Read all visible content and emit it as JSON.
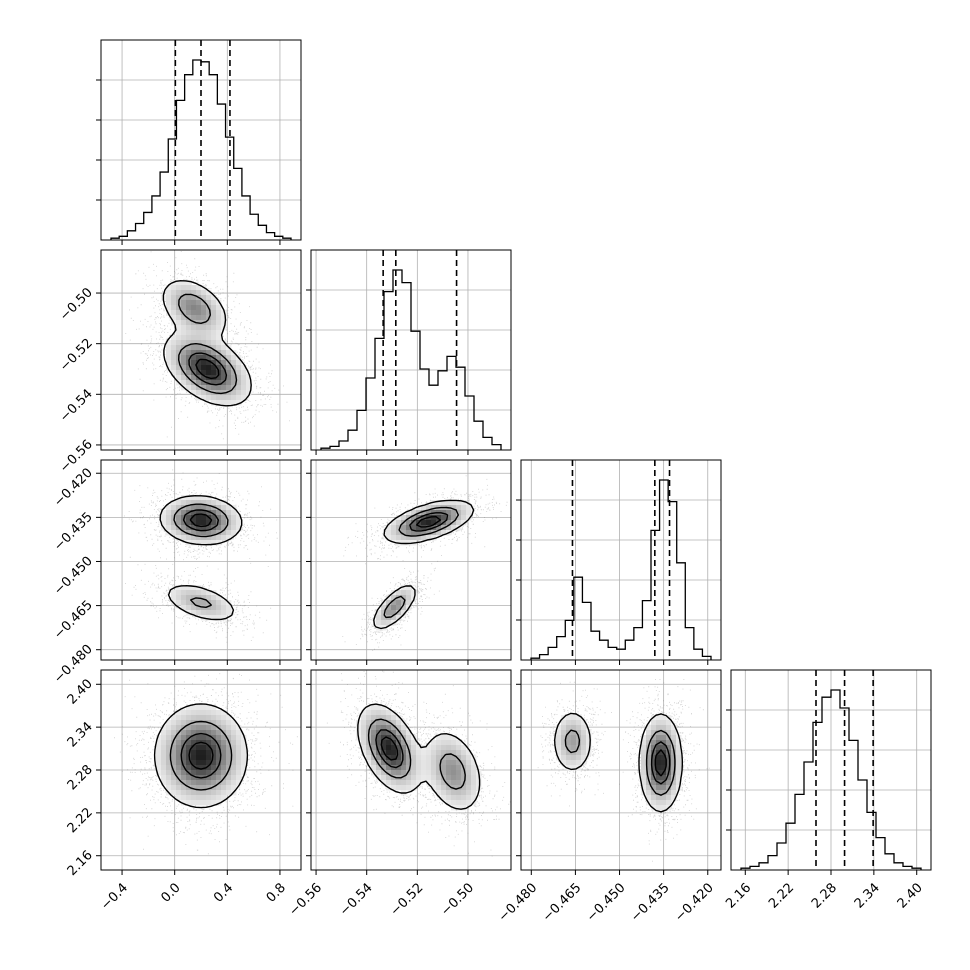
{
  "chart_data": {
    "type": "corner",
    "grid": true,
    "parameters": [
      {
        "range": [
          -0.56,
          0.96
        ],
        "ticks": [
          -0.4,
          0.0,
          0.4,
          0.8
        ],
        "tick_labels": [
          "−0.4",
          "0.0",
          "0.4",
          "0.8"
        ]
      },
      {
        "range": [
          -0.562,
          -0.483
        ],
        "ticks": [
          -0.56,
          -0.54,
          -0.52,
          -0.5
        ],
        "tick_labels": [
          "−0.56",
          "−0.54",
          "−0.52",
          "−0.50"
        ]
      },
      {
        "range": [
          -0.4835,
          -0.4155
        ],
        "ticks": [
          -0.48,
          -0.465,
          -0.45,
          -0.435,
          -0.42
        ],
        "tick_labels": [
          "−0.480",
          "−0.465",
          "−0.450",
          "−0.435",
          "−0.420"
        ]
      },
      {
        "range": [
          2.14,
          2.42
        ],
        "ticks": [
          2.16,
          2.22,
          2.28,
          2.34,
          2.4
        ],
        "tick_labels": [
          "2.16",
          "2.22",
          "2.28",
          "2.34",
          "2.40"
        ]
      }
    ],
    "histograms": [
      {
        "quantiles": [
          0.005,
          0.2,
          0.42
        ],
        "counts": [
          1,
          2,
          5,
          9,
          15,
          24,
          37,
          55,
          76,
          90,
          98,
          97,
          90,
          74,
          56,
          39,
          24,
          14,
          8,
          4,
          2,
          1
        ]
      },
      {
        "quantiles": [
          -0.5335,
          -0.5285,
          -0.5045
        ],
        "counts": [
          1,
          2,
          5,
          11,
          22,
          40,
          62,
          88,
          100,
          93,
          66,
          45,
          36,
          44,
          52,
          46,
          30,
          16,
          7,
          3
        ]
      },
      {
        "quantiles": [
          -0.466,
          -0.438,
          -0.433
        ],
        "counts": [
          1,
          3,
          7,
          13,
          22,
          46,
          32,
          16,
          11,
          7,
          6,
          11,
          18,
          33,
          72,
          100,
          88,
          54,
          18,
          6,
          2
        ]
      },
      {
        "quantiles": [
          2.259,
          2.299,
          2.339
        ],
        "counts": [
          1,
          2,
          4,
          8,
          15,
          26,
          42,
          60,
          82,
          96,
          100,
          90,
          72,
          50,
          32,
          18,
          9,
          4,
          2,
          1
        ]
      }
    ],
    "pairs": [
      {
        "x": 0,
        "y": 1,
        "blobs": [
          {
            "cx": 0.15,
            "cy": -0.506,
            "sx": 0.13,
            "sy": 0.006,
            "r": -0.4,
            "w": 0.6
          },
          {
            "cx": 0.25,
            "cy": -0.53,
            "sx": 0.16,
            "sy": 0.007,
            "r": -0.45,
            "w": 1.0
          }
        ]
      },
      {
        "x": 0,
        "y": 2,
        "blobs": [
          {
            "cx": 0.2,
            "cy": -0.436,
            "sx": 0.15,
            "sy": 0.004,
            "r": -0.1,
            "w": 1.0
          },
          {
            "cx": 0.2,
            "cy": -0.464,
            "sx": 0.15,
            "sy": 0.0035,
            "r": -0.5,
            "w": 0.45
          }
        ]
      },
      {
        "x": 0,
        "y": 3,
        "blobs": [
          {
            "cx": 0.2,
            "cy": 2.3,
            "sx": 0.17,
            "sy": 0.035,
            "r": 0.0,
            "w": 1.0
          }
        ]
      },
      {
        "x": 1,
        "y": 2,
        "blobs": [
          {
            "cx": -0.529,
            "cy": -0.4655,
            "sx": 0.0045,
            "sy": 0.004,
            "r": 0.7,
            "w": 0.6
          },
          {
            "cx": -0.5155,
            "cy": -0.4365,
            "sx": 0.0085,
            "sy": 0.0035,
            "r": 0.55,
            "w": 1.0
          }
        ]
      },
      {
        "x": 1,
        "y": 3,
        "blobs": [
          {
            "cx": -0.531,
            "cy": 2.31,
            "sx": 0.006,
            "sy": 0.03,
            "r": -0.45,
            "w": 1.0
          },
          {
            "cx": -0.506,
            "cy": 2.278,
            "sx": 0.006,
            "sy": 0.03,
            "r": -0.3,
            "w": 0.55
          }
        ]
      },
      {
        "x": 2,
        "y": 3,
        "blobs": [
          {
            "cx": -0.466,
            "cy": 2.32,
            "sx": 0.0035,
            "sy": 0.023,
            "r": 0.0,
            "w": 0.5
          },
          {
            "cx": -0.436,
            "cy": 2.29,
            "sx": 0.0035,
            "sy": 0.033,
            "r": 0.0,
            "w": 1.0
          }
        ]
      }
    ],
    "contour_levels": [
      0.118,
      0.393,
      0.675,
      0.864
    ],
    "colors": {
      "line": "#000000",
      "grid": "#b0b0b0",
      "points": "#7a7a7a"
    }
  }
}
